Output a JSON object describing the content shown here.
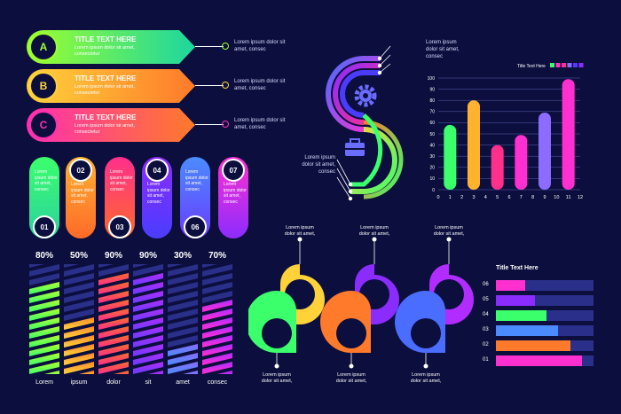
{
  "banners": [
    {
      "letter": "A",
      "title": "TITLE TEXT HERE",
      "sub1": "Lorem ipsum dolor sit amet,",
      "sub2": "consectetur",
      "note1": "Lorem ipsum dolor sit",
      "note2": "amet, consec",
      "c1": "#9cff2e",
      "c2": "#1dd6a0"
    },
    {
      "letter": "B",
      "title": "TITLE TEXT HERE",
      "sub1": "Lorem ipsum dolor sit amet,",
      "sub2": "consectetur",
      "note1": "Lorem ipsum dolor sit",
      "note2": "amet, consec",
      "c1": "#ffd23a",
      "c2": "#ff7a2a"
    },
    {
      "letter": "C",
      "title": "TITLE TEXT HERE",
      "sub1": "Lorem ipsum dolor sit amet,",
      "sub2": "consectetur",
      "note1": "Lorem ipsum dolor sit",
      "note2": "amet, consec",
      "c1": "#ff2fb0",
      "c2": "#ff7a2a"
    }
  ],
  "pills": [
    {
      "num": "01",
      "text": "Lorem ipsum dolor sit amet, consec",
      "c1": "#3bff6b",
      "c2": "#2bd1a0"
    },
    {
      "num": "02",
      "text": "Lorem ipsum dolor sit amet, consec",
      "c1": "#ffb22e",
      "c2": "#ff6a2a"
    },
    {
      "num": "03",
      "text": "Lorem ipsum dolor sit amet, consec",
      "c1": "#ff2f8c",
      "c2": "#ff6a2a"
    },
    {
      "num": "04",
      "text": "Lorem ipsum dolor sit amet, consec",
      "c1": "#8b2cff",
      "c2": "#4a3cff"
    },
    {
      "num": "06",
      "text": "Lorem ipsum dolor sit amet, consec",
      "c1": "#4a8cff",
      "c2": "#6a3cff"
    },
    {
      "num": "07",
      "text": "Lorem ipsum dolor sit amet, consec",
      "c1": "#ff2fd0",
      "c2": "#8b2cff"
    }
  ],
  "percent_bars": [
    {
      "pct": "80%",
      "value": 80,
      "label": "Lorem",
      "c1": "#3bff6b",
      "c2": "#b0ff2e"
    },
    {
      "pct": "50%",
      "value": 50,
      "label": "ipsum",
      "c1": "#ffd23a",
      "c2": "#ff8a2a"
    },
    {
      "pct": "90%",
      "value": 90,
      "label": "dolor",
      "c1": "#ff2f8c",
      "c2": "#ff6a2a"
    },
    {
      "pct": "90%",
      "value": 90,
      "label": "sit",
      "c1": "#6a3cff",
      "c2": "#b02cff"
    },
    {
      "pct": "30%",
      "value": 30,
      "label": "amet",
      "c1": "#4a8cff",
      "c2": "#8b6cff"
    },
    {
      "pct": "70%",
      "value": 70,
      "label": "consec",
      "c1": "#ff2fd0",
      "c2": "#b02cff"
    }
  ],
  "s_shape": {
    "top_note": [
      "Lorem ipsum",
      "dolor sit amet,",
      "consec"
    ],
    "left_note": [
      "Lorem ipsum",
      "dolor sit amet,",
      "consec"
    ],
    "gear_icon": "gear-icon",
    "briefcase_icon": "briefcase-icon"
  },
  "chart_data": {
    "type": "bar",
    "title": "Title Text Here",
    "x": [
      1,
      3,
      5,
      7,
      9,
      11
    ],
    "values": [
      58,
      80,
      40,
      49,
      69,
      99
    ],
    "colors": [
      "#3bff6b",
      "#ffb22e",
      "#ff2f8c",
      "#ff2fd0",
      "#8b6cff",
      "#ff2fd0"
    ],
    "xticks": [
      "0",
      "1",
      "2",
      "3",
      "4",
      "5",
      "6",
      "7",
      "8",
      "9",
      "10",
      "11",
      "12"
    ],
    "yticks": [
      "0",
      "10",
      "20",
      "30",
      "40",
      "50",
      "60",
      "70",
      "80",
      "90",
      "100"
    ],
    "ylim": [
      0,
      100
    ],
    "legend_colors": [
      "#3bff6b",
      "#ff2fd0",
      "#ff2f8c",
      "#8b6cff",
      "#4a3cff",
      "#8b2cff"
    ]
  },
  "links": [
    {
      "top": [
        "Lorem ipsum",
        "dolor sit amet,"
      ],
      "bottom": [
        "Lorem ipsum",
        "dolor sit amet,"
      ],
      "ca": "#ffd23a",
      "cb": "#3bff6b"
    },
    {
      "top": [
        "Lorem ipsum",
        "dolor sit amet,"
      ],
      "bottom": [
        "Lorem ipsum",
        "dolor sit amet,"
      ],
      "ca": "#8b2cff",
      "cb": "#ff7a2a"
    },
    {
      "top": [
        "Lorem ipsum",
        "dolor sit amet,"
      ],
      "bottom": [
        "Lorem ipsum",
        "dolor sit amet,"
      ],
      "ca": "#b02cff",
      "cb": "#4a6cff"
    }
  ],
  "hbar_chart": {
    "title": "Title Text Here",
    "rows": [
      {
        "label": "06",
        "value": 0.3,
        "color": "#ff2fd0"
      },
      {
        "label": "05",
        "value": 0.4,
        "color": "#8b2cff"
      },
      {
        "label": "04",
        "value": 0.52,
        "color": "#3bff6b"
      },
      {
        "label": "03",
        "value": 0.64,
        "color": "#4a8cff"
      },
      {
        "label": "02",
        "value": 0.76,
        "color": "#ff7a2a"
      },
      {
        "label": "01",
        "value": 0.88,
        "color": "#ff2fd0"
      }
    ]
  }
}
